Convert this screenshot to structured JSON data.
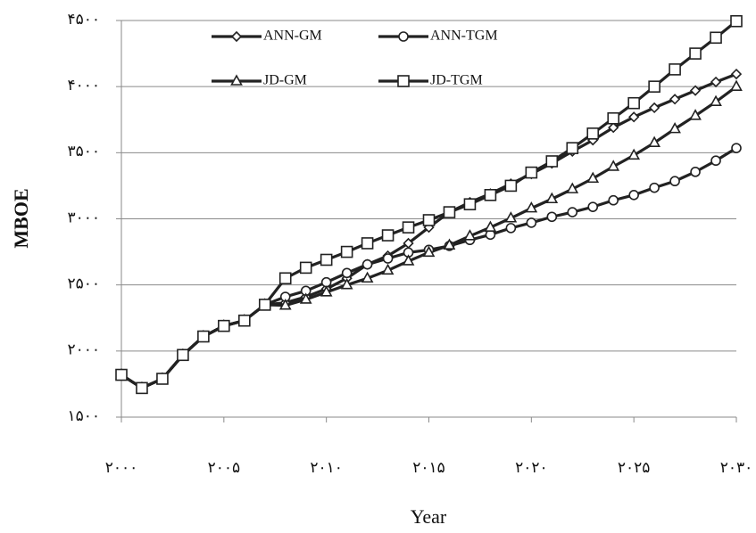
{
  "chart_data": {
    "type": "line",
    "y_label": "MBOE",
    "x_label": "Year",
    "x": [
      2000,
      2001,
      2002,
      2003,
      2004,
      2005,
      2006,
      2007,
      2008,
      2009,
      2010,
      2011,
      2012,
      2013,
      2014,
      2015,
      2016,
      2017,
      2018,
      2019,
      2020,
      2021,
      2022,
      2023,
      2024,
      2025,
      2026,
      2027,
      2028,
      2029,
      2030
    ],
    "series": [
      {
        "name": "ANN-GM",
        "color": "#222222",
        "marker": "diamond",
        "values": [
          1820,
          1720,
          1790,
          1970,
          2110,
          2190,
          2230,
          2350,
          2365,
          2410,
          2470,
          2550,
          2655,
          2720,
          2815,
          2935,
          3050,
          3125,
          3190,
          3265,
          3340,
          3420,
          3510,
          3595,
          3690,
          3770,
          3840,
          3905,
          3970,
          4035,
          4095
        ]
      },
      {
        "name": "ANN-TGM",
        "color": "#222222",
        "marker": "circle",
        "values": [
          1820,
          1720,
          1790,
          1970,
          2110,
          2190,
          2230,
          2350,
          2410,
          2455,
          2520,
          2590,
          2655,
          2700,
          2745,
          2765,
          2795,
          2840,
          2880,
          2930,
          2970,
          3015,
          3050,
          3090,
          3140,
          3180,
          3235,
          3285,
          3355,
          3440,
          3535
        ]
      },
      {
        "name": "JD-GM",
        "color": "#222222",
        "marker": "triangle",
        "values": [
          1820,
          1720,
          1790,
          1970,
          2110,
          2190,
          2230,
          2350,
          2345,
          2390,
          2445,
          2500,
          2550,
          2610,
          2680,
          2745,
          2800,
          2870,
          2935,
          3005,
          3080,
          3150,
          3225,
          3305,
          3395,
          3480,
          3575,
          3680,
          3780,
          3885,
          4000
        ]
      },
      {
        "name": "JD-TGM",
        "color": "#222222",
        "marker": "square",
        "values": [
          1820,
          1720,
          1790,
          1970,
          2110,
          2190,
          2230,
          2350,
          2550,
          2630,
          2690,
          2750,
          2815,
          2875,
          2935,
          2990,
          3050,
          3110,
          3180,
          3250,
          3350,
          3435,
          3535,
          3645,
          3760,
          3875,
          4000,
          4130,
          4250,
          4370,
          4495
        ]
      }
    ],
    "xlim": [
      2000,
      2030
    ],
    "xticks": [
      {
        "value": 2000,
        "label": "۲۰۰۰"
      },
      {
        "value": 2005,
        "label": "۲۰۰۵"
      },
      {
        "value": 2010,
        "label": "۲۰۱۰"
      },
      {
        "value": 2015,
        "label": "۲۰۱۵"
      },
      {
        "value": 2020,
        "label": "۲۰۲۰"
      },
      {
        "value": 2025,
        "label": "۲۰۲۵"
      },
      {
        "value": 2030,
        "label": "۲۰۳۰"
      }
    ],
    "ylim": [
      1500,
      4500
    ],
    "yticks": [
      {
        "value": 1500,
        "label": "۱۵۰۰"
      },
      {
        "value": 2000,
        "label": "۲۰۰۰"
      },
      {
        "value": 2500,
        "label": "۲۵۰۰"
      },
      {
        "value": 3000,
        "label": "۳۰۰۰"
      },
      {
        "value": 3500,
        "label": "۳۵۰۰"
      },
      {
        "value": 4000,
        "label": "۴۰۰۰"
      },
      {
        "value": 4500,
        "label": "۴۵۰۰"
      }
    ],
    "grid": true,
    "legend": "top"
  }
}
